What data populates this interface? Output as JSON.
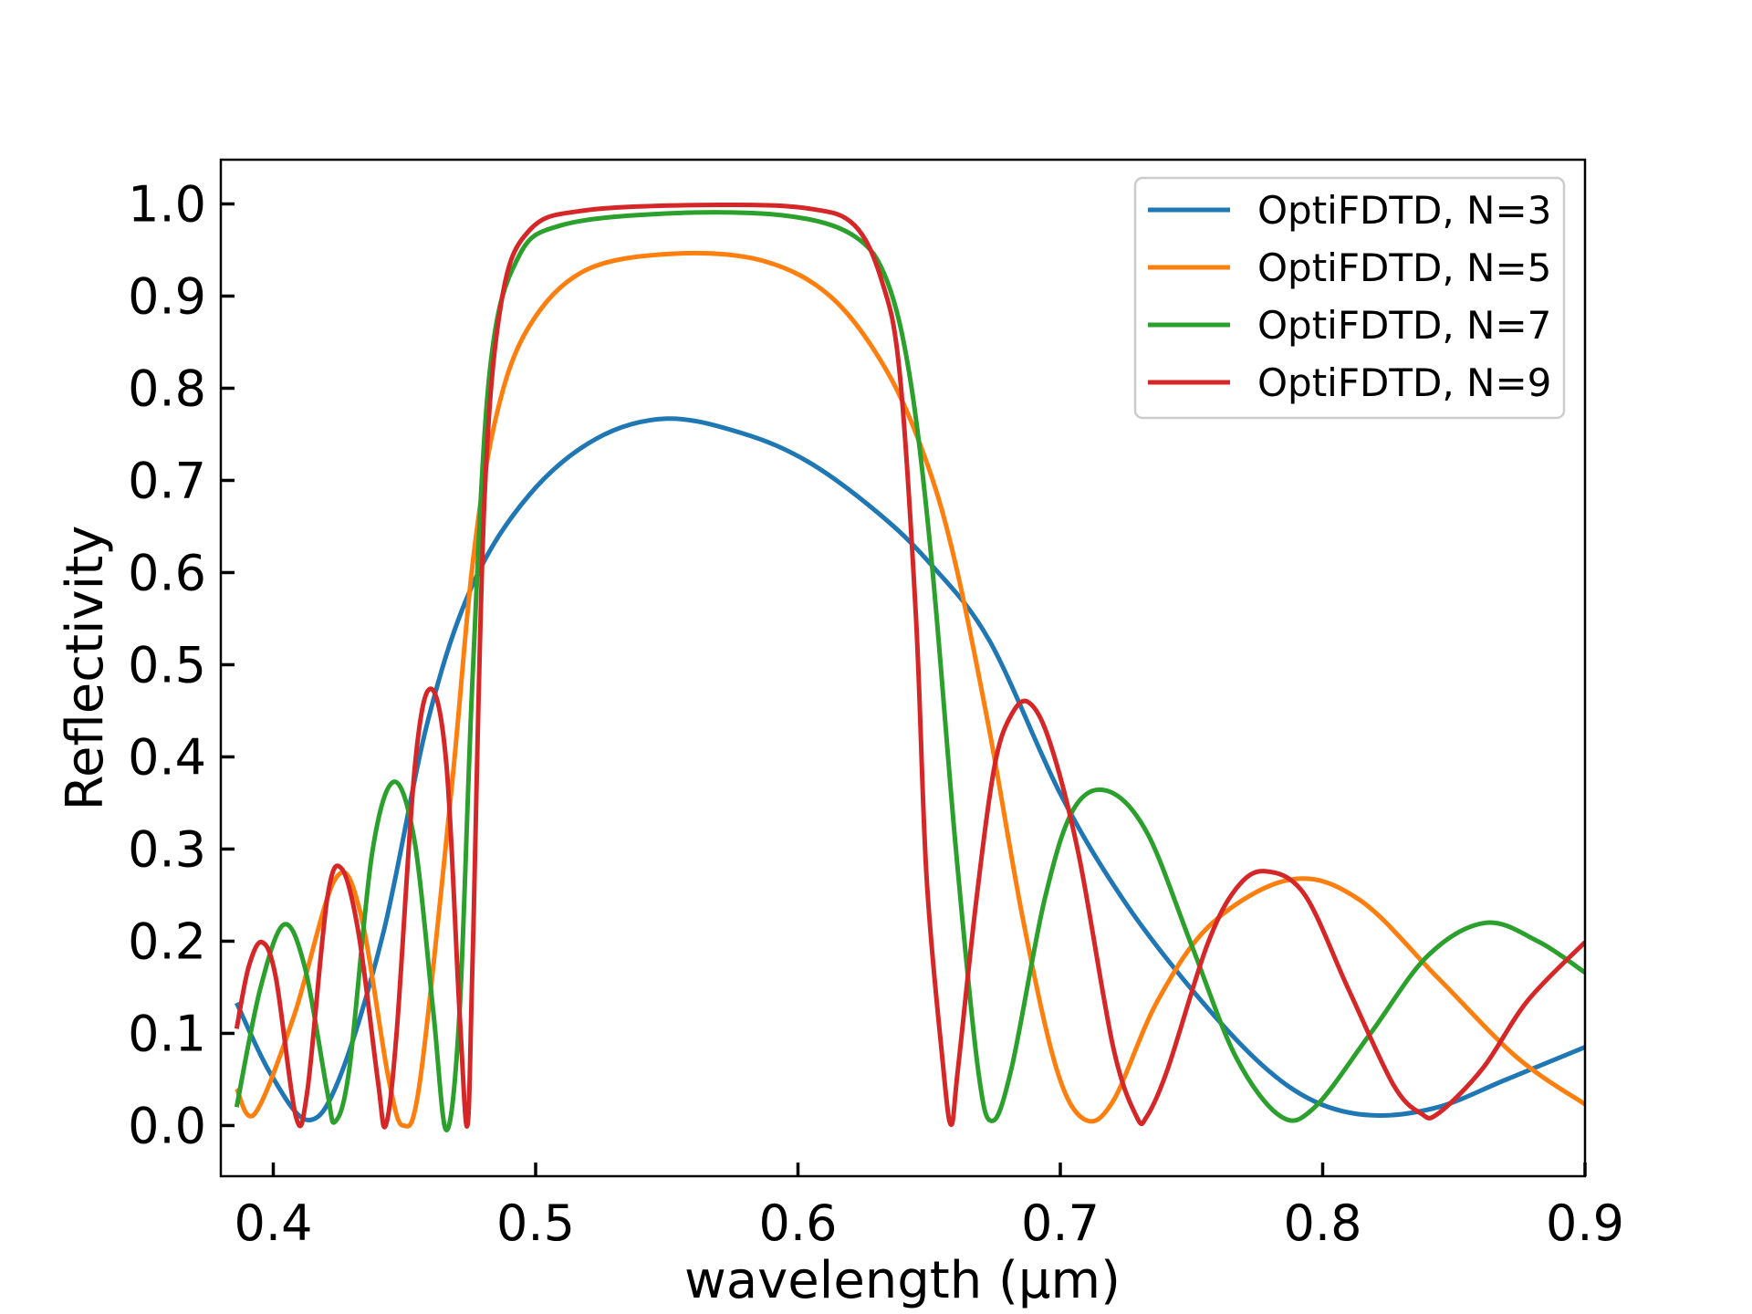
{
  "chart_data": {
    "type": "line",
    "title": "",
    "xlabel": "wavelength (μm)",
    "ylabel": "Reflectivity",
    "xlim": [
      0.38,
      0.9
    ],
    "ylim": [
      -0.055,
      1.048
    ],
    "xticks": [
      0.4,
      0.5,
      0.6,
      0.7,
      0.8,
      0.9
    ],
    "xtick_labels": [
      "0.4",
      "0.5",
      "0.6",
      "0.7",
      "0.8",
      "0.9"
    ],
    "yticks": [
      0.0,
      0.1,
      0.2,
      0.3,
      0.4,
      0.5,
      0.6,
      0.7,
      0.8,
      0.9,
      1.0
    ],
    "ytick_labels": [
      "0.0",
      "0.1",
      "0.2",
      "0.3",
      "0.4",
      "0.5",
      "0.6",
      "0.7",
      "0.8",
      "0.9",
      "1.0"
    ],
    "grid": false,
    "legend_placement": "top-right",
    "series": [
      {
        "name": "OptiFDTD, N=3",
        "color": "#1f77b4",
        "x": [
          0.386,
          0.399,
          0.413,
          0.425,
          0.442,
          0.459,
          0.476,
          0.4975,
          0.523,
          0.55,
          0.579,
          0.604,
          0.63,
          0.65,
          0.673,
          0.7,
          0.724,
          0.75,
          0.776,
          0.797,
          0.819,
          0.844,
          0.87,
          0.9
        ],
        "y": [
          0.133,
          0.056,
          0.006,
          0.05,
          0.21,
          0.44,
          0.587,
          0.684,
          0.745,
          0.767,
          0.751,
          0.72,
          0.666,
          0.611,
          0.526,
          0.36,
          0.245,
          0.148,
          0.068,
          0.026,
          0.011,
          0.02,
          0.05,
          0.085
        ]
      },
      {
        "name": "OptiFDTD, N=5",
        "color": "#ff7f0e",
        "x": [
          0.386,
          0.393,
          0.408,
          0.4235,
          0.433,
          0.444,
          0.4496,
          0.456,
          0.468,
          0.476,
          0.485,
          0.4975,
          0.519,
          0.553,
          0.587,
          0.613,
          0.634,
          0.649,
          0.66,
          0.673,
          0.686,
          0.6985,
          0.709,
          0.72,
          0.737,
          0.758,
          0.788,
          0.814,
          0.844,
          0.874,
          0.9
        ],
        "y": [
          0.04,
          0.013,
          0.12,
          0.267,
          0.233,
          0.05,
          0.0,
          0.05,
          0.367,
          0.61,
          0.77,
          0.867,
          0.928,
          0.946,
          0.938,
          0.898,
          0.818,
          0.72,
          0.61,
          0.428,
          0.22,
          0.062,
          0.007,
          0.026,
          0.135,
          0.22,
          0.267,
          0.245,
          0.16,
          0.074,
          0.023
        ]
      },
      {
        "name": "OptiFDTD, N=7",
        "color": "#2ca02c",
        "x": [
          0.386,
          0.395,
          0.404,
          0.412,
          0.4205,
          0.4235,
          0.429,
          0.4376,
          0.446,
          0.454,
          0.461,
          0.466,
          0.471,
          0.476,
          0.4825,
          0.493,
          0.51,
          0.553,
          0.596,
          0.6215,
          0.634,
          0.643,
          0.651,
          0.66,
          0.6686,
          0.674,
          0.6814,
          0.694,
          0.705,
          0.718,
          0.733,
          0.75,
          0.767,
          0.784,
          0.797,
          0.818,
          0.84,
          0.862,
          0.882,
          0.9
        ],
        "y": [
          0.02,
          0.148,
          0.218,
          0.172,
          0.038,
          0.004,
          0.062,
          0.294,
          0.373,
          0.306,
          0.123,
          -0.005,
          0.123,
          0.489,
          0.818,
          0.94,
          0.977,
          0.99,
          0.987,
          0.965,
          0.916,
          0.806,
          0.611,
          0.306,
          0.062,
          0.005,
          0.062,
          0.245,
          0.343,
          0.363,
          0.318,
          0.196,
          0.074,
          0.01,
          0.02,
          0.099,
          0.184,
          0.22,
          0.2,
          0.166
        ]
      },
      {
        "name": "OptiFDTD, N=9",
        "color": "#d62728",
        "x": [
          0.386,
          0.3906,
          0.3957,
          0.401,
          0.4086,
          0.413,
          0.4205,
          0.426,
          0.4325,
          0.4398,
          0.4428,
          0.447,
          0.454,
          0.46,
          0.466,
          0.471,
          0.474,
          0.476,
          0.4804,
          0.4868,
          0.4975,
          0.519,
          0.57,
          0.604,
          0.6215,
          0.632,
          0.6387,
          0.645,
          0.649,
          0.655,
          0.6583,
          0.661,
          0.668,
          0.675,
          0.6814,
          0.688,
          0.696,
          0.707,
          0.72,
          0.729,
          0.733,
          0.741,
          0.756,
          0.767,
          0.778,
          0.793,
          0.8098,
          0.827,
          0.8375,
          0.844,
          0.861,
          0.878,
          0.9
        ],
        "y": [
          0.105,
          0.172,
          0.199,
          0.16,
          0.01,
          0.038,
          0.245,
          0.279,
          0.209,
          0.05,
          0.0,
          0.1,
          0.391,
          0.474,
          0.391,
          0.123,
          0.0,
          0.184,
          0.672,
          0.891,
          0.971,
          0.993,
          0.999,
          0.995,
          0.977,
          0.916,
          0.818,
          0.55,
          0.27,
          0.074,
          0.001,
          0.062,
          0.245,
          0.391,
          0.446,
          0.459,
          0.416,
          0.294,
          0.087,
          0.01,
          0.01,
          0.062,
          0.196,
          0.257,
          0.276,
          0.251,
          0.148,
          0.044,
          0.013,
          0.013,
          0.062,
          0.135,
          0.199
        ]
      }
    ]
  }
}
